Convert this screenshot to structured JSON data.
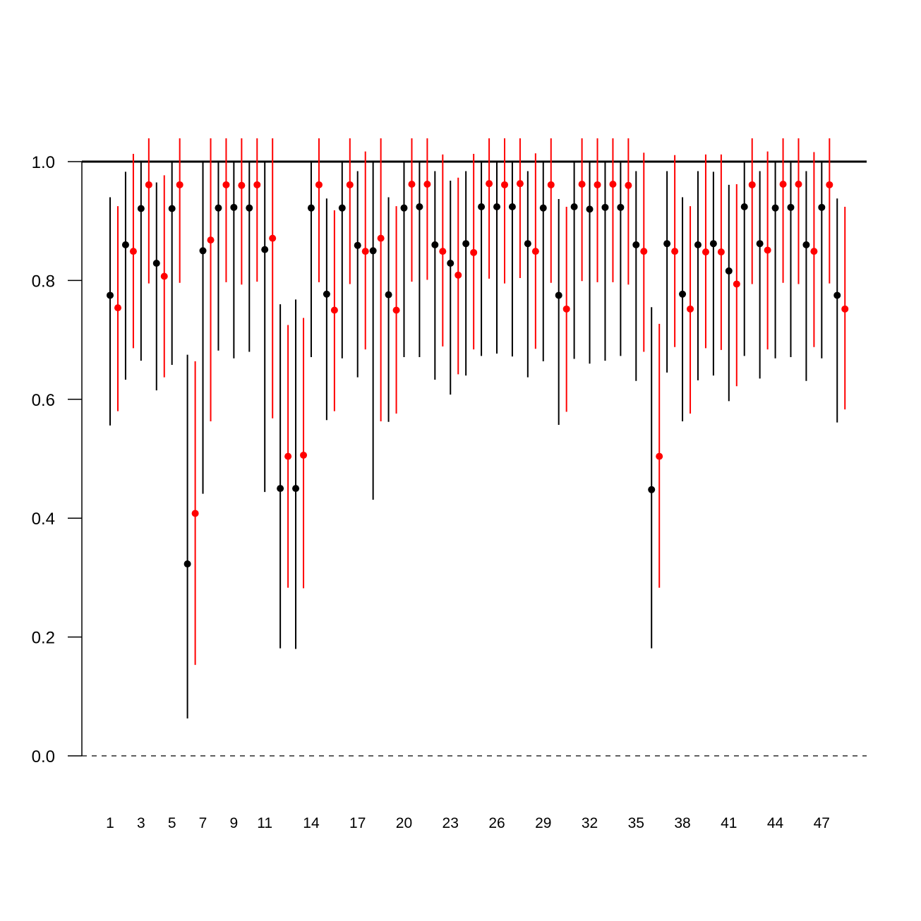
{
  "chart_data": {
    "type": "scatter",
    "title": "",
    "xlabel": "",
    "ylabel": "",
    "ylim": [
      -0.08,
      1.12
    ],
    "y_ticks": [
      0.0,
      0.2,
      0.4,
      0.6,
      0.8,
      1.0
    ],
    "y_tick_labels": [
      "0.0",
      "0.2",
      "0.4",
      "0.6",
      "0.8",
      "1.0"
    ],
    "x_tick_labels": [
      "1",
      "3",
      "5",
      "7",
      "9",
      "11",
      "14",
      "17",
      "20",
      "23",
      "26",
      "29",
      "32",
      "35",
      "38",
      "41",
      "44",
      "47"
    ],
    "x_tick_label_groups": [
      1,
      3,
      5,
      7,
      9,
      11,
      14,
      17,
      20,
      23,
      26,
      29,
      32,
      35,
      38,
      41,
      44,
      47
    ],
    "groups": 48,
    "reference_lines": [
      {
        "y": 1.0,
        "style": "solid"
      },
      {
        "y": 0.0,
        "style": "dashed"
      }
    ],
    "grid": false,
    "legend": "none",
    "series": [
      {
        "color": "#000000",
        "estimate": [
          0.775,
          0.86,
          0.921,
          0.829,
          0.921,
          0.323,
          0.85,
          0.922,
          0.923,
          0.922,
          0.852,
          0.45,
          0.45,
          0.922,
          0.777,
          0.922,
          0.859,
          0.85,
          0.776,
          0.922,
          0.924,
          0.86,
          0.829,
          0.862,
          0.924,
          0.924,
          0.924,
          0.862,
          0.922,
          0.775,
          0.924,
          0.92,
          0.923,
          0.923,
          0.86,
          0.448,
          0.862,
          0.777,
          0.86,
          0.862,
          0.816,
          0.924,
          0.862,
          0.922,
          0.923,
          0.86,
          0.923,
          0.775
        ],
        "lower": [
          0.556,
          0.633,
          0.665,
          0.615,
          0.658,
          0.063,
          0.441,
          0.682,
          0.669,
          0.68,
          0.444,
          0.181,
          0.18,
          0.671,
          0.565,
          0.669,
          0.637,
          0.431,
          0.562,
          0.671,
          0.671,
          0.633,
          0.608,
          0.64,
          0.673,
          0.677,
          0.672,
          0.637,
          0.664,
          0.557,
          0.668,
          0.66,
          0.665,
          0.673,
          0.631,
          0.181,
          0.645,
          0.563,
          0.632,
          0.64,
          0.597,
          0.673,
          0.635,
          0.669,
          0.671,
          0.631,
          0.669,
          0.561
        ],
        "upper": [
          0.94,
          0.983,
          1.0,
          0.965,
          1.0,
          0.675,
          1.0,
          1.0,
          1.0,
          1.0,
          1.0,
          0.76,
          0.768,
          1.0,
          0.938,
          1.0,
          0.984,
          1.0,
          0.94,
          1.0,
          1.0,
          0.984,
          0.968,
          0.984,
          1.0,
          1.0,
          1.0,
          0.984,
          1.0,
          0.937,
          1.0,
          1.0,
          1.0,
          1.0,
          0.984,
          0.755,
          0.984,
          0.94,
          0.984,
          0.983,
          0.961,
          1.0,
          0.984,
          1.0,
          1.0,
          0.984,
          1.0,
          0.938
        ]
      },
      {
        "color": "#ff0000",
        "estimate": [
          0.754,
          0.849,
          0.961,
          0.807,
          0.961,
          0.408,
          0.868,
          0.961,
          0.96,
          0.961,
          0.871,
          0.504,
          0.506,
          0.961,
          0.75,
          0.961,
          0.849,
          0.871,
          0.75,
          0.962,
          0.962,
          0.849,
          0.809,
          0.847,
          0.963,
          0.961,
          0.963,
          0.849,
          0.961,
          0.752,
          0.962,
          0.961,
          0.962,
          0.96,
          0.849,
          0.504,
          0.849,
          0.752,
          0.848,
          0.848,
          0.794,
          0.961,
          0.851,
          0.962,
          0.962,
          0.849,
          0.961,
          0.752
        ],
        "lower": [
          0.58,
          0.686,
          0.795,
          0.637,
          0.796,
          0.153,
          0.563,
          0.797,
          0.793,
          0.798,
          0.568,
          0.283,
          0.282,
          0.797,
          0.58,
          0.794,
          0.684,
          0.563,
          0.576,
          0.798,
          0.801,
          0.689,
          0.642,
          0.684,
          0.803,
          0.795,
          0.804,
          0.685,
          0.796,
          0.579,
          0.799,
          0.797,
          0.797,
          0.793,
          0.68,
          0.283,
          0.688,
          0.576,
          0.686,
          0.683,
          0.622,
          0.794,
          0.684,
          0.796,
          0.794,
          0.688,
          0.795,
          0.583
        ],
        "upper": [
          0.925,
          1.013,
          1.04,
          0.977,
          1.04,
          0.664,
          1.04,
          1.04,
          1.04,
          1.04,
          1.04,
          0.725,
          0.737,
          1.04,
          0.918,
          1.04,
          1.017,
          1.04,
          0.925,
          1.04,
          1.04,
          1.012,
          0.973,
          1.013,
          1.04,
          1.04,
          1.04,
          1.014,
          1.04,
          0.924,
          1.04,
          1.04,
          1.04,
          1.04,
          1.015,
          0.727,
          1.011,
          0.925,
          1.012,
          1.012,
          0.962,
          1.04,
          1.017,
          1.04,
          1.04,
          1.016,
          1.04,
          0.924
        ]
      }
    ]
  }
}
